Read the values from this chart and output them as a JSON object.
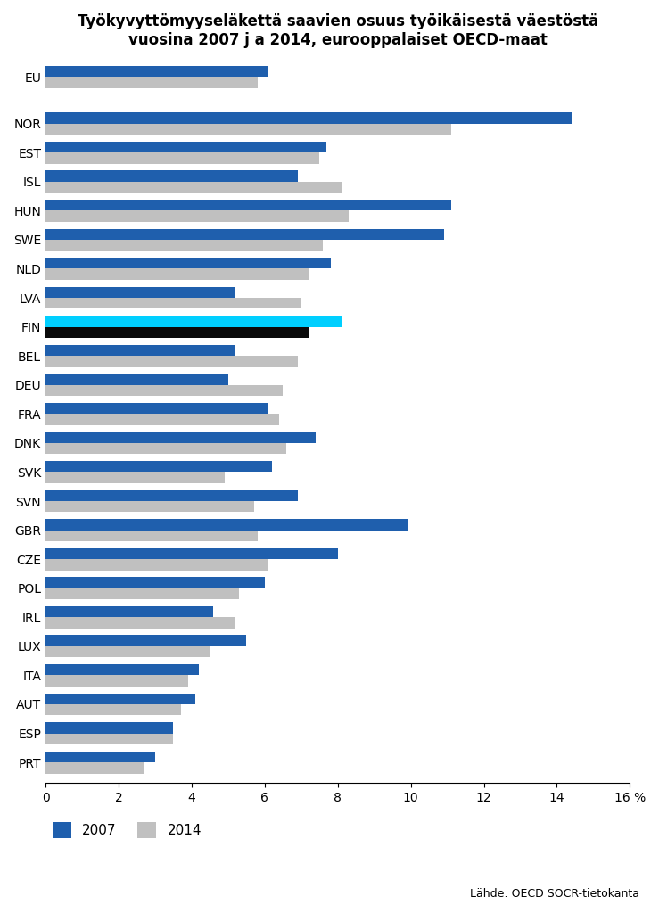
{
  "title": "Työkyvyttömyyseläkettä saavien osuus työikäisestä väestöstä\nvuosina 2007 j a 2014, eurooppalaiset OECD-maat",
  "source": "Lähde: OECD SOCR-tietokanta",
  "countries": [
    "EU",
    "NOR",
    "EST",
    "ISL",
    "HUN",
    "SWE",
    "NLD",
    "LVA",
    "FIN",
    "BEL",
    "DEU",
    "FRA",
    "DNK",
    "SVK",
    "SVN",
    "GBR",
    "CZE",
    "POL",
    "IRL",
    "LUX",
    "ITA",
    "AUT",
    "ESP",
    "PRT"
  ],
  "values_2007": [
    6.1,
    14.4,
    7.7,
    6.9,
    11.1,
    10.9,
    7.8,
    5.2,
    8.1,
    5.2,
    5.0,
    6.1,
    7.4,
    6.2,
    6.9,
    9.9,
    8.0,
    6.0,
    4.6,
    5.5,
    4.2,
    4.1,
    3.5,
    3.0
  ],
  "values_2014": [
    5.8,
    11.1,
    7.5,
    8.1,
    8.3,
    7.6,
    7.2,
    7.0,
    7.2,
    6.9,
    6.5,
    6.4,
    6.6,
    4.9,
    5.7,
    5.8,
    6.1,
    5.3,
    5.2,
    4.5,
    3.9,
    3.7,
    3.5,
    2.7
  ],
  "color_2007_normal": "#1F5FAD",
  "color_2007_fin": "#00CFFF",
  "color_2014_normal": "#C0C0C0",
  "color_2014_fin": "#0A0A0A",
  "xlim": [
    0,
    16
  ],
  "xticks": [
    0,
    2,
    4,
    6,
    8,
    10,
    12,
    14,
    16
  ],
  "xtick_labels": [
    "0",
    "2",
    "4",
    "6",
    "8",
    "10",
    "12",
    "14",
    "16 %"
  ],
  "bar_height": 0.38,
  "figsize": [
    7.39,
    10.24
  ],
  "dpi": 100
}
